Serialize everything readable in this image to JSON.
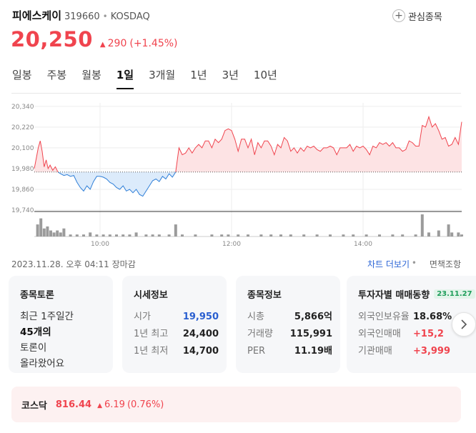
{
  "stock": {
    "name": "피에스케이",
    "code": "319660",
    "separator": "•",
    "market": "KOSDAQ",
    "watchlist_label": "관심종목"
  },
  "price": {
    "current": "20,250",
    "change_arrow": "▲",
    "change": "290",
    "change_pct": "(+1.45%)"
  },
  "tabs": [
    {
      "label": "일봉"
    },
    {
      "label": "주봉"
    },
    {
      "label": "월봉"
    },
    {
      "label": "1일",
      "active": true
    },
    {
      "label": "3개월"
    },
    {
      "label": "1년"
    },
    {
      "label": "3년"
    },
    {
      "label": "10년"
    }
  ],
  "chart_data": {
    "type": "area",
    "y_ticks": [
      19740,
      19860,
      19980,
      20100,
      20220,
      20340
    ],
    "y_tick_labels": [
      "19,740",
      "19,860",
      "19,980",
      "20,100",
      "20,220",
      "20,340"
    ],
    "ylim": [
      19740,
      20360
    ],
    "x_ticks": [
      10,
      12,
      14
    ],
    "x_tick_labels": [
      "10:00",
      "12:00",
      "14:00"
    ],
    "xlim": [
      9.0,
      15.5
    ],
    "reference_price": 19960,
    "colors": {
      "up": "#f0444e",
      "down": "#2f7fd8",
      "up_fill": "#fde3e4",
      "down_fill": "#dcebfb",
      "volume": "#9b9b9b"
    },
    "price_series": [
      [
        9.0,
        19980
      ],
      [
        9.03,
        20040
      ],
      [
        9.06,
        20100
      ],
      [
        9.09,
        20140
      ],
      [
        9.12,
        20080
      ],
      [
        9.15,
        19990
      ],
      [
        9.18,
        20030
      ],
      [
        9.21,
        19980
      ],
      [
        9.24,
        20000
      ],
      [
        9.28,
        19970
      ],
      [
        9.32,
        19990
      ],
      [
        9.36,
        19960
      ],
      [
        9.4,
        19950
      ],
      [
        9.45,
        19940
      ],
      [
        9.5,
        19945
      ],
      [
        9.55,
        19935
      ],
      [
        9.6,
        19940
      ],
      [
        9.65,
        19900
      ],
      [
        9.7,
        19870
      ],
      [
        9.75,
        19850
      ],
      [
        9.8,
        19880
      ],
      [
        9.85,
        19860
      ],
      [
        9.9,
        19905
      ],
      [
        9.95,
        19935
      ],
      [
        10.0,
        19935
      ],
      [
        10.05,
        19930
      ],
      [
        10.1,
        19920
      ],
      [
        10.15,
        19900
      ],
      [
        10.2,
        19890
      ],
      [
        10.25,
        19870
      ],
      [
        10.3,
        19860
      ],
      [
        10.35,
        19880
      ],
      [
        10.4,
        19850
      ],
      [
        10.45,
        19860
      ],
      [
        10.5,
        19840
      ],
      [
        10.55,
        19860
      ],
      [
        10.6,
        19830
      ],
      [
        10.65,
        19820
      ],
      [
        10.7,
        19850
      ],
      [
        10.75,
        19880
      ],
      [
        10.8,
        19910
      ],
      [
        10.85,
        19920
      ],
      [
        10.9,
        19905
      ],
      [
        10.95,
        19935
      ],
      [
        11.0,
        19920
      ],
      [
        11.05,
        19950
      ],
      [
        11.1,
        19930
      ],
      [
        11.15,
        19960
      ],
      [
        11.2,
        20100
      ],
      [
        11.25,
        20060
      ],
      [
        11.3,
        20070
      ],
      [
        11.35,
        20100
      ],
      [
        11.4,
        20070
      ],
      [
        11.45,
        20100
      ],
      [
        11.5,
        20120
      ],
      [
        11.55,
        20100
      ],
      [
        11.6,
        20140
      ],
      [
        11.65,
        20140
      ],
      [
        11.7,
        20100
      ],
      [
        11.75,
        20150
      ],
      [
        11.8,
        20130
      ],
      [
        11.85,
        20150
      ],
      [
        11.9,
        20200
      ],
      [
        11.95,
        20210
      ],
      [
        12.0,
        20200
      ],
      [
        12.05,
        20150
      ],
      [
        12.1,
        20080
      ],
      [
        12.15,
        20150
      ],
      [
        12.2,
        20150
      ],
      [
        12.25,
        20100
      ],
      [
        12.3,
        20150
      ],
      [
        12.35,
        20060
      ],
      [
        12.4,
        20130
      ],
      [
        12.45,
        20100
      ],
      [
        12.5,
        20140
      ],
      [
        12.55,
        20140
      ],
      [
        12.6,
        20110
      ],
      [
        12.65,
        20060
      ],
      [
        12.7,
        20120
      ],
      [
        12.75,
        20100
      ],
      [
        12.8,
        20160
      ],
      [
        12.85,
        20140
      ],
      [
        12.9,
        20080
      ],
      [
        12.95,
        20100
      ],
      [
        13.0,
        20070
      ],
      [
        13.05,
        20100
      ],
      [
        13.1,
        20080
      ],
      [
        13.15,
        20110
      ],
      [
        13.2,
        20100
      ],
      [
        13.25,
        20110
      ],
      [
        13.3,
        20090
      ],
      [
        13.35,
        20080
      ],
      [
        13.4,
        20100
      ],
      [
        13.45,
        20100
      ],
      [
        13.5,
        20110
      ],
      [
        13.55,
        20100
      ],
      [
        13.6,
        20060
      ],
      [
        13.65,
        20100
      ],
      [
        13.7,
        20100
      ],
      [
        13.75,
        20100
      ],
      [
        13.8,
        20120
      ],
      [
        13.85,
        20080
      ],
      [
        13.9,
        20110
      ],
      [
        13.95,
        20100
      ],
      [
        14.0,
        20110
      ],
      [
        14.05,
        20090
      ],
      [
        14.1,
        20060
      ],
      [
        14.15,
        20110
      ],
      [
        14.2,
        20100
      ],
      [
        14.25,
        20130
      ],
      [
        14.3,
        20120
      ],
      [
        14.35,
        20130
      ],
      [
        14.4,
        20110
      ],
      [
        14.45,
        20130
      ],
      [
        14.5,
        20100
      ],
      [
        14.55,
        20100
      ],
      [
        14.6,
        20080
      ],
      [
        14.65,
        20090
      ],
      [
        14.7,
        20140
      ],
      [
        14.75,
        20130
      ],
      [
        14.8,
        20110
      ],
      [
        14.85,
        20110
      ],
      [
        14.9,
        20230
      ],
      [
        14.95,
        20220
      ],
      [
        15.0,
        20280
      ],
      [
        15.05,
        20220
      ],
      [
        15.1,
        20240
      ],
      [
        15.15,
        20200
      ],
      [
        15.2,
        20150
      ],
      [
        15.25,
        20160
      ],
      [
        15.3,
        20110
      ],
      [
        15.35,
        20120
      ],
      [
        15.4,
        20160
      ],
      [
        15.45,
        20120
      ],
      [
        15.5,
        20250
      ]
    ],
    "volume": [
      [
        9.05,
        6
      ],
      [
        9.1,
        9
      ],
      [
        9.15,
        4
      ],
      [
        9.2,
        5
      ],
      [
        9.25,
        3
      ],
      [
        9.3,
        2
      ],
      [
        9.35,
        3
      ],
      [
        9.4,
        2
      ],
      [
        9.45,
        4
      ],
      [
        9.55,
        1
      ],
      [
        9.65,
        1
      ],
      [
        9.75,
        1
      ],
      [
        9.85,
        2
      ],
      [
        9.95,
        1
      ],
      [
        10.05,
        1
      ],
      [
        10.15,
        1
      ],
      [
        10.25,
        1
      ],
      [
        10.35,
        1
      ],
      [
        10.45,
        1
      ],
      [
        10.55,
        2
      ],
      [
        10.7,
        1
      ],
      [
        10.8,
        1
      ],
      [
        10.9,
        1
      ],
      [
        11.05,
        1
      ],
      [
        11.15,
        6
      ],
      [
        11.25,
        1
      ],
      [
        11.45,
        1
      ],
      [
        11.7,
        1
      ],
      [
        11.85,
        1
      ],
      [
        11.95,
        1
      ],
      [
        12.1,
        1
      ],
      [
        12.25,
        1
      ],
      [
        12.45,
        1
      ],
      [
        12.6,
        1
      ],
      [
        12.75,
        1
      ],
      [
        12.9,
        1
      ],
      [
        13.1,
        1
      ],
      [
        13.3,
        1
      ],
      [
        13.5,
        1
      ],
      [
        13.7,
        1
      ],
      [
        13.85,
        1
      ],
      [
        14.05,
        1
      ],
      [
        14.25,
        1
      ],
      [
        14.45,
        1
      ],
      [
        14.6,
        1
      ],
      [
        14.8,
        1
      ],
      [
        14.9,
        11
      ],
      [
        15.0,
        2
      ],
      [
        15.15,
        3
      ],
      [
        15.3,
        6
      ],
      [
        15.35,
        2
      ],
      [
        15.45,
        2
      ],
      [
        15.5,
        1
      ]
    ]
  },
  "meta": {
    "timestamp": "2023.11.28. 오후 04:11 장마감",
    "chart_more": "차트 더보기",
    "separator": "•",
    "area_toggle": "면책조항"
  },
  "forum": {
    "title": "종목토론",
    "line1": "최근 1주일간",
    "count": "45개의",
    "line3": "토론이",
    "line4": "올라왔어요"
  },
  "market_info": {
    "title": "시세정보",
    "rows": [
      {
        "label": "시가",
        "value": "19,950"
      },
      {
        "label": "1년 최고",
        "value": "24,400"
      },
      {
        "label": "1년 최저",
        "value": "14,700"
      }
    ]
  },
  "stock_info": {
    "title": "종목정보",
    "rows": [
      {
        "label": "시총",
        "value": "5,866억"
      },
      {
        "label": "거래량",
        "value": "115,991"
      },
      {
        "label": "PER",
        "value": "11.19배"
      }
    ]
  },
  "investor": {
    "title": "투자자별 매매동향",
    "date": "23.11.27",
    "rows": [
      {
        "label": "외국인보유율",
        "value": "18.68%"
      },
      {
        "label": "외국인매매",
        "value": "+15,2"
      },
      {
        "label": "기관매매",
        "value": "+3,999"
      }
    ]
  },
  "index": {
    "name": "코스닥",
    "value": "816.44",
    "arrow": "▲",
    "change": "6.19",
    "pct": "(0.76%)"
  }
}
